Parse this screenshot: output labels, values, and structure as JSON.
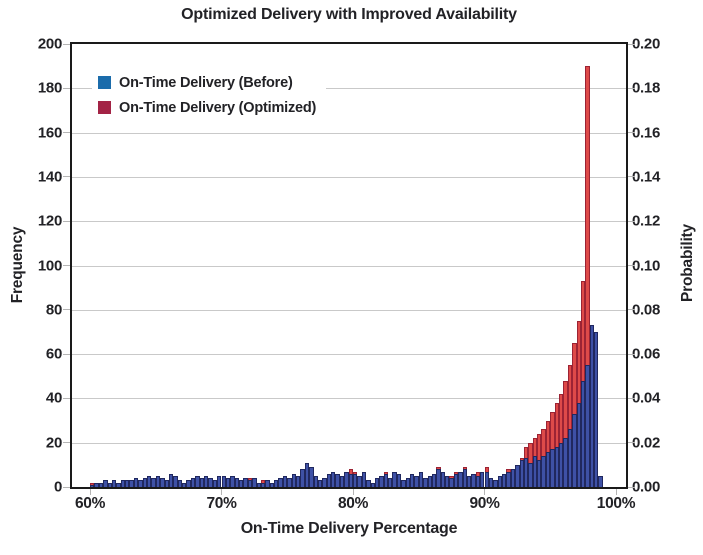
{
  "title": "Optimized Delivery with Improved Availability",
  "axes": {
    "x_label": "On-Time Delivery Percentage",
    "y_left_label": "Frequency",
    "y_right_label": "Probability",
    "x_ticks": [
      "60%",
      "70%",
      "80%",
      "90%",
      "100%"
    ],
    "y_left_ticks": [
      "0",
      "20",
      "40",
      "60",
      "80",
      "100",
      "120",
      "140",
      "160",
      "180",
      "200"
    ],
    "y_right_ticks": [
      "0.00",
      "0.02",
      "0.04",
      "0.06",
      "0.08",
      "0.10",
      "0.12",
      "0.14",
      "0.16",
      "0.18",
      "0.20"
    ]
  },
  "legend": [
    {
      "label": "On-Time Delivery (Before)",
      "swatch": "#1b6cab"
    },
    {
      "label": "On-Time Delivery (Optimized)",
      "swatch": "#a32345"
    }
  ],
  "colors": {
    "text": "#222226",
    "frame": "#1a1a1a",
    "gridline": "#c9c9c9",
    "before_fill": "#3e51a6",
    "before_edge": "#20285f",
    "optimized_fill": "#de4a49",
    "optimized_edge": "#9c2334",
    "background": "#ffffff"
  },
  "chart_data": {
    "type": "bar",
    "subtype": "overlaid-histogram",
    "title": "Optimized Delivery with Improved Availability",
    "xlabel": "On-Time Delivery Percentage",
    "ylabel_left": "Frequency",
    "ylabel_right": "Probability",
    "x_range_percent": [
      60,
      100
    ],
    "ylim_left": [
      0,
      200
    ],
    "ylim_right": [
      0.0,
      0.2
    ],
    "grid": "horizontal",
    "legend_position": "upper-left",
    "bin_start_percent": 60.0,
    "bin_width_percent": 0.3333,
    "bin_count": 117,
    "series": [
      {
        "name": "On-Time Delivery (Before)",
        "color": "#3e51a6",
        "edge": "#20285f",
        "values": [
          1,
          2,
          2,
          3,
          2,
          3,
          2,
          3,
          3,
          3,
          4,
          3,
          4,
          5,
          4,
          5,
          4,
          3,
          6,
          5,
          3,
          2,
          3,
          4,
          5,
          4,
          5,
          4,
          3,
          5,
          5,
          4,
          5,
          4,
          3,
          4,
          3,
          4,
          2,
          2,
          3,
          2,
          3,
          4,
          5,
          4,
          6,
          5,
          8,
          11,
          9,
          5,
          3,
          4,
          6,
          7,
          6,
          5,
          7,
          6,
          6,
          5,
          7,
          3,
          2,
          4,
          5,
          6,
          4,
          7,
          6,
          3,
          4,
          6,
          5,
          7,
          4,
          5,
          6,
          8,
          7,
          5,
          4,
          6,
          7,
          8,
          5,
          6,
          5,
          7,
          7,
          4,
          3,
          5,
          6,
          7,
          8,
          10,
          12,
          13,
          11,
          14,
          12,
          14,
          16,
          17,
          18,
          20,
          22,
          26,
          33,
          38,
          48,
          55,
          73,
          70,
          5
        ]
      },
      {
        "name": "On-Time Delivery (Optimized)",
        "color": "#de4a49",
        "edge": "#9c2334",
        "values": [
          2,
          0,
          0,
          0,
          0,
          0,
          0,
          0,
          0,
          0,
          0,
          0,
          0,
          0,
          0,
          0,
          0,
          0,
          0,
          0,
          0,
          0,
          0,
          0,
          0,
          0,
          0,
          0,
          0,
          2,
          2,
          0,
          3,
          4,
          0,
          3,
          4,
          3,
          0,
          3,
          3,
          0,
          0,
          2,
          3,
          3,
          4,
          4,
          5,
          6,
          5,
          4,
          3,
          3,
          4,
          5,
          5,
          4,
          5,
          8,
          7,
          4,
          5,
          3,
          2,
          3,
          4,
          7,
          4,
          5,
          5,
          3,
          3,
          4,
          4,
          5,
          4,
          4,
          5,
          9,
          6,
          5,
          5,
          7,
          6,
          9,
          5,
          5,
          7,
          6,
          9,
          4,
          3,
          5,
          6,
          8,
          8,
          9,
          13,
          18,
          20,
          22,
          24,
          26,
          30,
          34,
          38,
          42,
          48,
          55,
          65,
          75,
          93,
          190,
          55,
          3,
          0
        ]
      }
    ]
  }
}
